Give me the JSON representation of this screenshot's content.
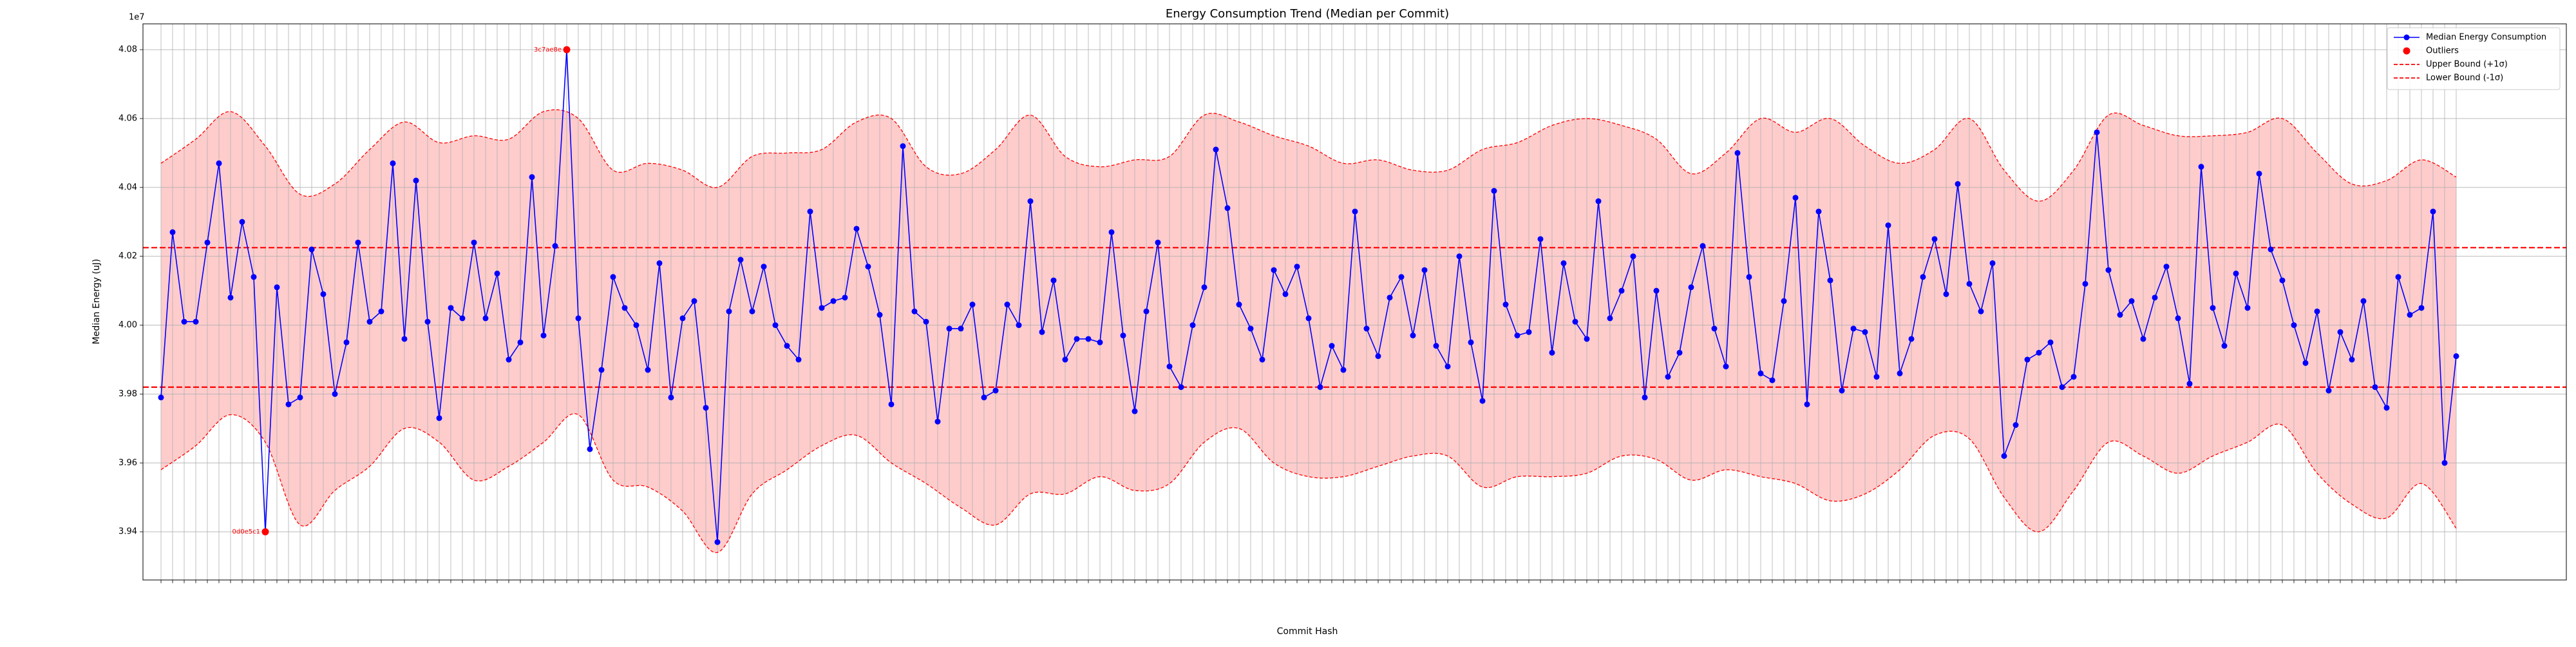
{
  "chart_data": {
    "type": "line",
    "title": "Energy Consumption Trend (Median per Commit)",
    "x_label": "Commit Hash",
    "y_label": "Median Energy (uJ)",
    "y_offset_label": "1e7",
    "categories": [
      null,
      null,
      null,
      null,
      null,
      null,
      null,
      null,
      null,
      null,
      null,
      null,
      null,
      null,
      null,
      null,
      null,
      null,
      null,
      null,
      null,
      null,
      null,
      null,
      null,
      null,
      null,
      null,
      null,
      null,
      null,
      null,
      null,
      null,
      null,
      null,
      null,
      null,
      null,
      null,
      null,
      null,
      null,
      null,
      null,
      null,
      null,
      null,
      null,
      null,
      null,
      null,
      null,
      null,
      null,
      null,
      null,
      null,
      null,
      null,
      null,
      null,
      null,
      null,
      null,
      null,
      null,
      null,
      null,
      null,
      null,
      null,
      null,
      null,
      null,
      null,
      null,
      null,
      null,
      null,
      null,
      null,
      null,
      null,
      null,
      null,
      null,
      null,
      null,
      null,
      null,
      null,
      null,
      null,
      null,
      null,
      null,
      null,
      null,
      null,
      null,
      null,
      null,
      null,
      null,
      null,
      null,
      null,
      null,
      null,
      null,
      null,
      null,
      null,
      null,
      null,
      null,
      null,
      null,
      null,
      null,
      null,
      null,
      null,
      null,
      null,
      null,
      null,
      null,
      null,
      null,
      null,
      null,
      null,
      null,
      null,
      null,
      null,
      null,
      null,
      null,
      null,
      null,
      null,
      null,
      null,
      null,
      null,
      null,
      null,
      null,
      null,
      null,
      null,
      null,
      null,
      null,
      null,
      null,
      null,
      null,
      null,
      null,
      null,
      null,
      null,
      null,
      null,
      null,
      null,
      null,
      null,
      null,
      null,
      null,
      null,
      null,
      null,
      null,
      null,
      null,
      null,
      null,
      null,
      null,
      null,
      null,
      null,
      null,
      null,
      null,
      null,
      null,
      null,
      null,
      null,
      null,
      null,
      null
    ],
    "series": [
      {
        "name": "Median Energy Consumption",
        "color": "#0000ff",
        "values": [
          3.979,
          4.027,
          4.001,
          4.001,
          4.024,
          4.047,
          4.008,
          4.03,
          4.014,
          3.94,
          4.011,
          3.977,
          3.979,
          4.022,
          4.009,
          3.98,
          3.995,
          4.024,
          4.001,
          4.004,
          4.047,
          3.996,
          4.042,
          4.001,
          3.973,
          4.005,
          4.002,
          4.024,
          4.002,
          4.015,
          3.99,
          3.995,
          4.043,
          3.997,
          4.023,
          4.08,
          4.002,
          3.964,
          3.987,
          4.014,
          4.005,
          4.0,
          3.987,
          4.018,
          3.979,
          4.002,
          4.007,
          3.976,
          3.937,
          4.004,
          4.019,
          4.004,
          4.017,
          4.0,
          3.994,
          3.99,
          4.033,
          4.005,
          4.007,
          4.008,
          4.028,
          4.017,
          4.003,
          3.977,
          4.052,
          4.004,
          4.001,
          3.972,
          3.999,
          3.999,
          4.006,
          3.979,
          3.981,
          4.006,
          4.0,
          4.036,
          3.998,
          4.013,
          3.99,
          3.996,
          3.996,
          3.995,
          4.027,
          3.997,
          3.975,
          4.004,
          4.024,
          3.988,
          3.982,
          4.0,
          4.011,
          4.051,
          4.034,
          4.006,
          3.999,
          3.99,
          4.016,
          4.009,
          4.017,
          4.002,
          3.982,
          3.994,
          3.987,
          4.033,
          3.999,
          3.991,
          4.008,
          4.014,
          3.997,
          4.016,
          3.994,
          3.988,
          4.02,
          3.995,
          3.978,
          4.039,
          4.006,
          3.997,
          3.998,
          4.025,
          3.992,
          4.018,
          4.001,
          3.996,
          4.036,
          4.002,
          4.01,
          4.02,
          3.979,
          4.01,
          3.985,
          3.992,
          4.011,
          4.023,
          3.999,
          3.988,
          4.05,
          4.014,
          3.986,
          3.984,
          4.007,
          4.037,
          3.977,
          4.033,
          4.013,
          3.981,
          3.999,
          3.998,
          3.985,
          4.029,
          3.986,
          3.996,
          4.014,
          4.025,
          4.009,
          4.041,
          4.012,
          4.004,
          4.018,
          3.962,
          3.971,
          3.99,
          3.992,
          3.995,
          3.982,
          3.985,
          4.012,
          4.056,
          4.016,
          4.003,
          4.007,
          3.996,
          4.008,
          4.017,
          4.002,
          3.983,
          4.046,
          4.005,
          3.994,
          4.015,
          4.005,
          4.044,
          4.022,
          4.013,
          4.0,
          3.989,
          4.004,
          3.981,
          3.998,
          3.99,
          4.007,
          3.982,
          3.976,
          4.014,
          4.003,
          4.005,
          4.033,
          3.96,
          3.991
        ]
      },
      {
        "name": "Outliers",
        "color": "#ff0000",
        "x": [
          9,
          35
        ],
        "values": [
          3.94,
          4.08
        ],
        "point_labels": [
          "0d0e5c1",
          "3c7ae8e"
        ]
      }
    ],
    "thresholds": [
      {
        "name": "Upper Bound (+1σ)",
        "value": 4.0225,
        "color": "#ff0000"
      },
      {
        "name": "Lower Bound (-1σ)",
        "value": 3.982,
        "color": "#ff0000"
      }
    ],
    "band": {
      "color": "#ff0000",
      "x": [
        0,
        3,
        6,
        9,
        12,
        15,
        18,
        21,
        24,
        27,
        30,
        33,
        36,
        39,
        42,
        45,
        48,
        51,
        54,
        57,
        60,
        63,
        66,
        69,
        72,
        75,
        78,
        81,
        84,
        87,
        90,
        93,
        96,
        99,
        102,
        105,
        108,
        111,
        114,
        117,
        120,
        123,
        126,
        129,
        132,
        135,
        138,
        141,
        144,
        147,
        150,
        153,
        156,
        159,
        162,
        165,
        168,
        171,
        174,
        177,
        180,
        183,
        186,
        189,
        192,
        195,
        198
      ],
      "upper": [
        4.047,
        4.054,
        4.062,
        4.052,
        4.038,
        4.041,
        4.051,
        4.059,
        4.053,
        4.055,
        4.054,
        4.062,
        4.06,
        4.045,
        4.047,
        4.045,
        4.04,
        4.049,
        4.05,
        4.051,
        4.059,
        4.06,
        4.046,
        4.044,
        4.051,
        4.061,
        4.049,
        4.046,
        4.048,
        4.049,
        4.061,
        4.059,
        4.055,
        4.052,
        4.047,
        4.048,
        4.045,
        4.045,
        4.051,
        4.053,
        4.058,
        4.06,
        4.058,
        4.054,
        4.044,
        4.05,
        4.06,
        4.056,
        4.06,
        4.052,
        4.047,
        4.051,
        4.06,
        4.045,
        4.036,
        4.045,
        4.061,
        4.058,
        4.055,
        4.055,
        4.056,
        4.06,
        4.05,
        4.041,
        4.042,
        4.048,
        4.043
      ],
      "lower": [
        3.958,
        3.965,
        3.974,
        3.966,
        3.942,
        3.952,
        3.959,
        3.97,
        3.966,
        3.955,
        3.959,
        3.966,
        3.974,
        3.955,
        3.953,
        3.946,
        3.934,
        3.951,
        3.958,
        3.965,
        3.968,
        3.96,
        3.954,
        3.947,
        3.942,
        3.951,
        3.951,
        3.956,
        3.952,
        3.954,
        3.966,
        3.97,
        3.96,
        3.956,
        3.956,
        3.959,
        3.962,
        3.962,
        3.953,
        3.956,
        3.956,
        3.957,
        3.962,
        3.961,
        3.955,
        3.958,
        3.956,
        3.954,
        3.949,
        3.951,
        3.958,
        3.968,
        3.967,
        3.95,
        3.94,
        3.952,
        3.966,
        3.962,
        3.957,
        3.962,
        3.966,
        3.971,
        3.957,
        3.948,
        3.944,
        3.954,
        3.941
      ]
    },
    "ylim": [
      3.926,
      4.0875
    ],
    "yticks": [
      3.94,
      3.96,
      3.98,
      {
        "value": 4,
        "label": "4.00"
      },
      4.02,
      4.04,
      4.06,
      4.08
    ],
    "grid": true,
    "legend": "upper right"
  }
}
